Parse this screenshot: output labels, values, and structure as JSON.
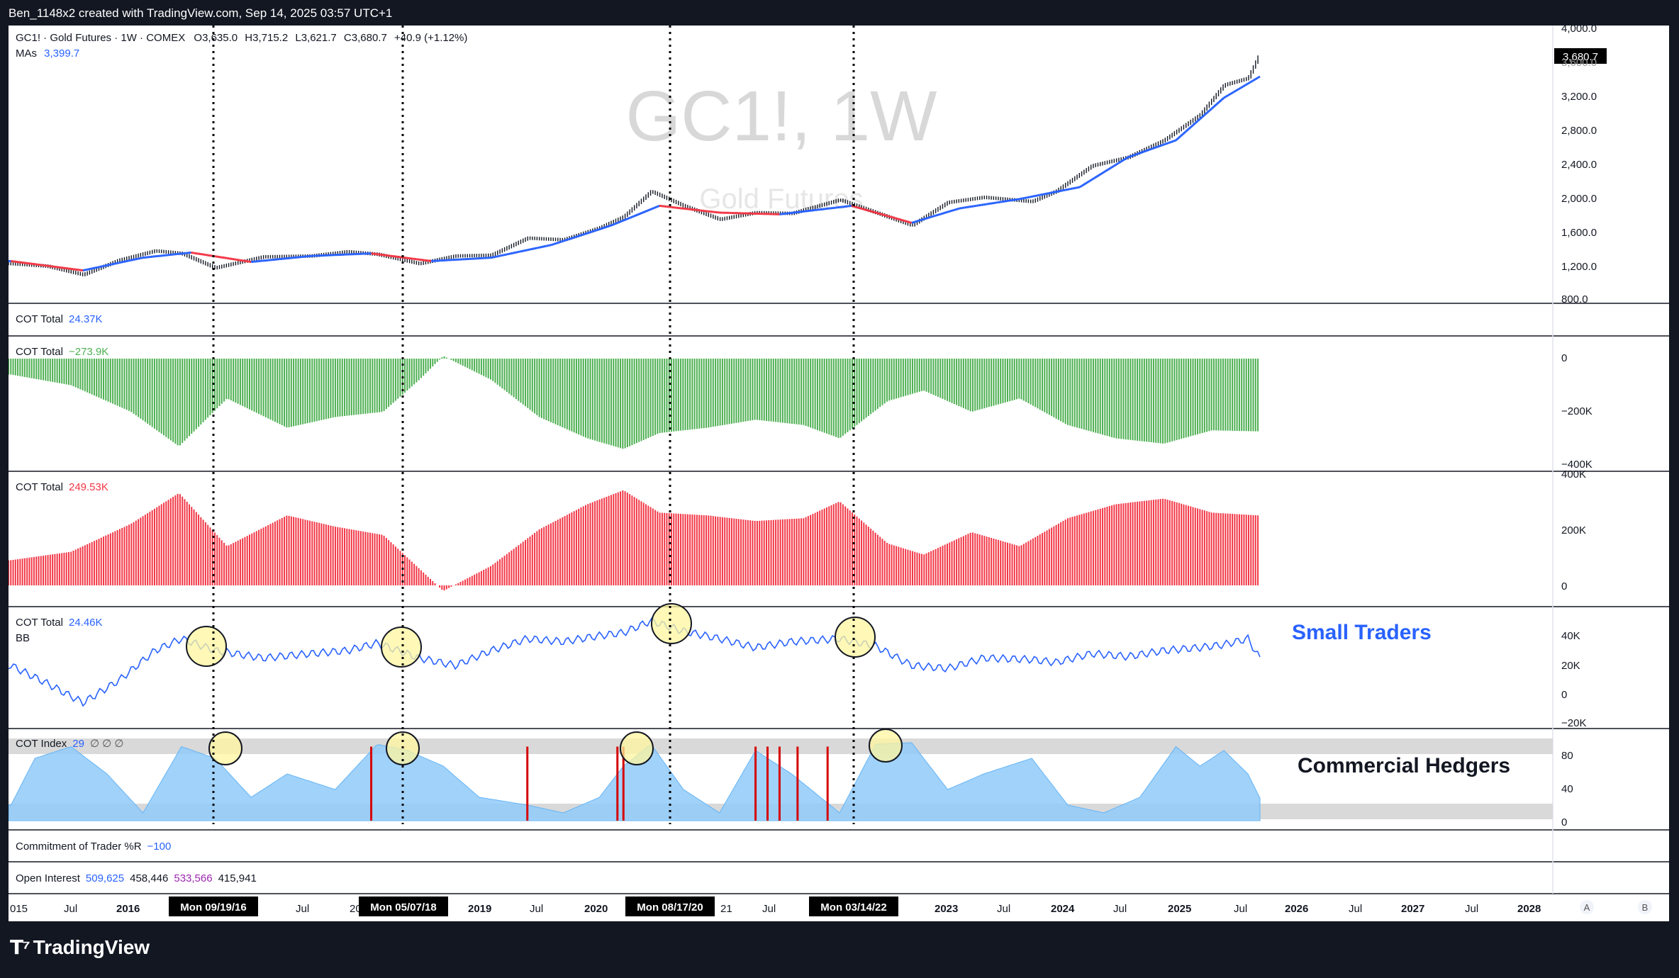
{
  "header": {
    "created_by": "Ben_1148x2 created with TradingView.com, Sep 14, 2025 03:57 UTC+1"
  },
  "watermark": {
    "symbol": "GC1!, 1W",
    "name": "Gold Futures"
  },
  "price_legend": {
    "symbol": "GC1! · Gold Futures · 1W · COMEX",
    "o_label": "O",
    "o": "3,635.0",
    "h_label": "H",
    "h": "3,715.2",
    "l_label": "L",
    "l": "3,621.7",
    "c_label": "C",
    "c": "3,680.7",
    "change": "+40.9 (+1.12%)",
    "mas_label": "MAs",
    "mas_value": "3,399.7",
    "last_price": "3,680.7"
  },
  "panes": {
    "cot1": {
      "label": "COT Total",
      "value": "24.37K"
    },
    "cot2": {
      "label": "COT Total",
      "value": "−273.9K"
    },
    "cot3": {
      "label": "COT Total",
      "value": "249.53K"
    },
    "cot4": {
      "label": "COT Total",
      "value": "24.46K",
      "sub": "BB"
    },
    "cot_index": {
      "label": "COT Index",
      "value": "29",
      "nulls": "∅ ∅ ∅"
    },
    "cot_r": {
      "label": "Commitment of Trader %R",
      "value": "−100"
    },
    "oi": {
      "label": "Open Interest",
      "v1": "509,625",
      "v2": "458,446",
      "v3": "533,566",
      "v4": "415,941"
    }
  },
  "annotations": {
    "small_traders": "Small Traders",
    "commercial_hedgers": "Commercial Hedgers"
  },
  "price_axis": [
    "4,000.0",
    "3,600.0",
    "3,200.0",
    "2,800.0",
    "2,400.0",
    "2,000.0",
    "1,600.0",
    "1,200.0",
    "800.0"
  ],
  "axis_net": [
    "0",
    "−200K",
    "−400K"
  ],
  "axis_long": [
    "400K",
    "200K",
    "0"
  ],
  "axis_small": [
    "40K",
    "20K",
    "0",
    "−20K"
  ],
  "axis_index": [
    "80",
    "40",
    "0"
  ],
  "time_axis": [
    "015",
    "Jul",
    "2016",
    "Jul",
    "20",
    "2019",
    "Jul",
    "2020",
    "21",
    "Jul",
    "2023",
    "Jul",
    "2024",
    "Jul",
    "2025",
    "Jul",
    "2026",
    "Jul",
    "2027",
    "Jul",
    "2028"
  ],
  "time_markers": [
    "Mon 09/19/16",
    "Mon 05/07/18",
    "Mon 08/17/20",
    "Mon 03/14/22"
  ],
  "scale_buttons": [
    "A",
    "B"
  ],
  "footer": {
    "brand": "TradingView"
  },
  "colors": {
    "price": "#131722",
    "ma_up": "#2962ff",
    "ma_down": "#f23645",
    "net_bars": "#4caf50",
    "long_bars": "#f23645",
    "small": "#2962ff",
    "index_fill": "#90caf9",
    "highlight": "#fff59d",
    "label_blue": "#2962ff"
  },
  "chart_data": [
    {
      "type": "line",
      "title": "GC1! · Gold Futures · 1W · COMEX",
      "series": [
        {
          "name": "GC1!",
          "x": [
            2015.3,
            2015.6,
            2015.9,
            2016.2,
            2016.5,
            2016.72,
            2017.0,
            2017.4,
            2017.8,
            2018.1,
            2018.35,
            2018.7,
            2019.0,
            2019.3,
            2019.6,
            2019.9,
            2020.2,
            2020.4,
            2020.63,
            2020.9,
            2021.2,
            2021.5,
            2021.8,
            2022.2,
            2022.5,
            2022.8,
            2023.1,
            2023.4,
            2023.8,
            2024.0,
            2024.3,
            2024.6,
            2024.9,
            2025.2,
            2025.4,
            2025.6,
            2025.7
          ],
          "values": [
            1200,
            1170,
            1070,
            1240,
            1350,
            1320,
            1150,
            1280,
            1290,
            1340,
            1310,
            1200,
            1290,
            1300,
            1500,
            1480,
            1620,
            1750,
            2050,
            1880,
            1720,
            1800,
            1790,
            1950,
            1800,
            1650,
            1920,
            1980,
            1930,
            2050,
            2350,
            2450,
            2650,
            2950,
            3300,
            3380,
            3680
          ]
        },
        {
          "name": "MAs",
          "x": [
            2015.3,
            2015.9,
            2016.4,
            2016.8,
            2017.3,
            2017.8,
            2018.3,
            2018.8,
            2019.3,
            2019.8,
            2020.3,
            2020.7,
            2021.2,
            2021.7,
            2022.3,
            2022.8,
            2023.2,
            2023.7,
            2024.2,
            2024.6,
            2025.0,
            2025.4,
            2025.7
          ],
          "values": [
            1230,
            1120,
            1270,
            1330,
            1220,
            1290,
            1320,
            1230,
            1270,
            1420,
            1650,
            1880,
            1800,
            1780,
            1880,
            1680,
            1850,
            1960,
            2100,
            2450,
            2650,
            3150,
            3400
          ]
        }
      ],
      "ylim": [
        800,
        4000
      ]
    },
    {
      "type": "bar",
      "title": "COT Total",
      "series": [
        {
          "name": "COT Total",
          "x": [
            2015.3,
            2015.8,
            2016.3,
            2016.7,
            2017.1,
            2017.6,
            2018.0,
            2018.4,
            2018.7,
            2018.9,
            2019.3,
            2019.7,
            2020.1,
            2020.4,
            2020.7,
            2021.1,
            2021.5,
            2021.9,
            2022.2,
            2022.6,
            2022.9,
            2023.3,
            2023.7,
            2024.1,
            2024.5,
            2024.9,
            2025.3,
            2025.7
          ],
          "values": [
            -60,
            -100,
            -200,
            -330,
            -150,
            -260,
            -220,
            -200,
            -80,
            10,
            -80,
            -220,
            -300,
            -340,
            -280,
            -260,
            -230,
            -250,
            -300,
            -160,
            -120,
            -200,
            -150,
            -250,
            -300,
            -320,
            -270,
            -273.9
          ]
        }
      ],
      "ylim": [
        -400,
        0
      ]
    },
    {
      "type": "bar",
      "title": "COT Total",
      "series": [
        {
          "name": "COT Total",
          "x": [
            2015.3,
            2015.8,
            2016.3,
            2016.7,
            2017.1,
            2017.6,
            2018.0,
            2018.4,
            2018.7,
            2018.9,
            2019.3,
            2019.7,
            2020.1,
            2020.4,
            2020.7,
            2021.1,
            2021.5,
            2021.9,
            2022.2,
            2022.6,
            2022.9,
            2023.3,
            2023.7,
            2024.1,
            2024.5,
            2024.9,
            2025.3,
            2025.7
          ],
          "values": [
            90,
            120,
            220,
            330,
            140,
            250,
            210,
            180,
            60,
            -20,
            70,
            200,
            290,
            340,
            260,
            250,
            230,
            240,
            300,
            150,
            110,
            190,
            140,
            240,
            290,
            310,
            260,
            249.53
          ]
        }
      ],
      "ylim": [
        0,
        400
      ]
    },
    {
      "type": "line",
      "title": "COT Total",
      "series": [
        {
          "name": "COT Total",
          "x": [
            2015.3,
            2015.6,
            2015.9,
            2016.2,
            2016.5,
            2016.72,
            2017.0,
            2017.4,
            2017.8,
            2018.1,
            2018.35,
            2018.7,
            2019.0,
            2019.3,
            2019.6,
            2019.9,
            2020.2,
            2020.4,
            2020.63,
            2020.9,
            2021.2,
            2021.5,
            2021.8,
            2022.2,
            2022.5,
            2022.8,
            2023.1,
            2023.4,
            2023.8,
            2024.0,
            2024.3,
            2024.6,
            2024.9,
            2025.2,
            2025.4,
            2025.6,
            2025.7
          ],
          "values": [
            20,
            8,
            -5,
            10,
            30,
            38,
            30,
            25,
            28,
            30,
            35,
            25,
            20,
            30,
            38,
            36,
            40,
            42,
            50,
            43,
            38,
            32,
            36,
            38,
            33,
            20,
            18,
            25,
            24,
            22,
            28,
            26,
            30,
            32,
            34,
            38,
            24.46
          ]
        }
      ],
      "ylim": [
        -20,
        50
      ]
    },
    {
      "type": "area",
      "title": "COT Index",
      "series": [
        {
          "name": "COT Index",
          "x": [
            2015.3,
            2015.5,
            2015.8,
            2016.1,
            2016.4,
            2016.72,
            2017.0,
            2017.3,
            2017.6,
            2018.0,
            2018.35,
            2018.6,
            2018.9,
            2019.2,
            2019.6,
            2019.9,
            2020.2,
            2020.4,
            2020.63,
            2020.9,
            2021.2,
            2021.5,
            2021.8,
            2022.2,
            2022.5,
            2022.8,
            2023.1,
            2023.4,
            2023.8,
            2024.1,
            2024.4,
            2024.7,
            2025.0,
            2025.2,
            2025.4,
            2025.6,
            2025.7
          ],
          "values": [
            20,
            80,
            95,
            60,
            10,
            95,
            80,
            30,
            60,
            40,
            98,
            90,
            70,
            30,
            20,
            10,
            30,
            70,
            98,
            40,
            10,
            90,
            60,
            10,
            98,
            100,
            40,
            60,
            80,
            20,
            10,
            30,
            95,
            70,
            90,
            60,
            29
          ]
        }
      ],
      "ylim": [
        0,
        100
      ]
    }
  ]
}
